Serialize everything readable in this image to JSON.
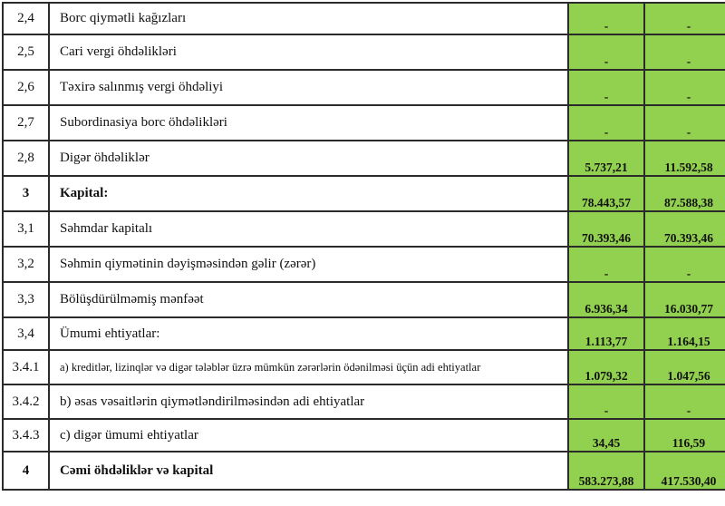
{
  "table": {
    "value_cell_color": "#92d050",
    "grid_color": "#2b2b2b",
    "text_color": "#111111",
    "rows": [
      {
        "num": "2,4",
        "label": "Borc qiymətli kağızları",
        "v1": "-",
        "v2": "-",
        "bold": false
      },
      {
        "num": "2,5",
        "label": "Cari vergi öhdəlikləri",
        "v1": "-",
        "v2": "-",
        "bold": false
      },
      {
        "num": "2,6",
        "label": "Təxirə salınmış vergi öhdəliyi",
        "v1": "-",
        "v2": "-",
        "bold": false
      },
      {
        "num": "2,7",
        "label": "Subordinasiya borc öhdəlikləri",
        "v1": "-",
        "v2": "-",
        "bold": false
      },
      {
        "num": "2,8",
        "label": "Digər öhdəliklər",
        "v1": "5.737,21",
        "v2": "11.592,58",
        "bold": false
      },
      {
        "num": "3",
        "label": "Kapital:",
        "v1": "78.443,57",
        "v2": "87.588,38",
        "bold": true
      },
      {
        "num": "3,1",
        "label": "Səhmdar kapitalı",
        "v1": "70.393,46",
        "v2": "70.393,46",
        "bold": false
      },
      {
        "num": "3,2",
        "label": "Səhmin qiymətinin dəyişməsindən gəlir (zərər)",
        "v1": "-",
        "v2": "-",
        "bold": false
      },
      {
        "num": "3,3",
        "label": "Bölüşdürülməmiş mənfəət",
        "v1": "6.936,34",
        "v2": "16.030,77",
        "bold": false
      },
      {
        "num": "3,4",
        "label": "Ümumi ehtiyatlar:",
        "v1": "1.113,77",
        "v2": "1.164,15",
        "bold": false
      },
      {
        "num": "3.4.1",
        "label": "a) kreditlər, lizinqlər və digər tələblər üzrə mümkün zərərlərin ödənilməsi üçün adi ehtiyatlar",
        "v1": "1.079,32",
        "v2": "1.047,56",
        "bold": false
      },
      {
        "num": "3.4.2",
        "label": "b) əsas vəsaitlərin qiymətləndirilməsindən adi ehtiyatlar",
        "v1": "-",
        "v2": "-",
        "bold": false
      },
      {
        "num": "3.4.3",
        "label": "c) digər ümumi ehtiyatlar",
        "v1": "34,45",
        "v2": "116,59",
        "bold": false
      },
      {
        "num": "4",
        "label": "Cəmi öhdəliklər və kapital",
        "v1": "583.273,88",
        "v2": "417.530,40",
        "bold": true
      }
    ]
  }
}
